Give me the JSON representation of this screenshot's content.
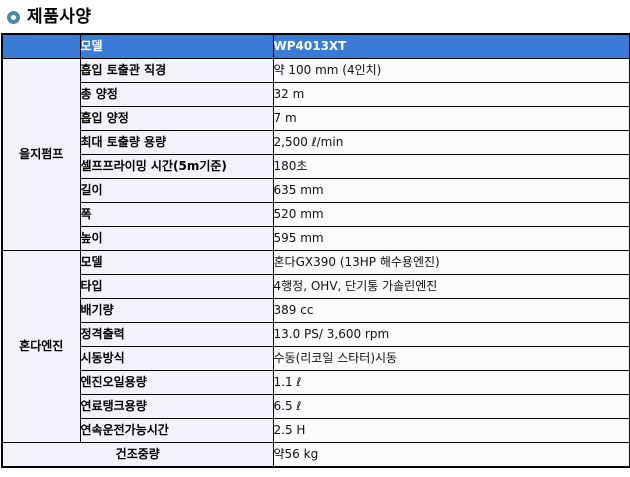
{
  "title": "제품사양",
  "colors": {
    "header_bg": "#3A7BD8",
    "header_text": "#FFFFFF",
    "cell_bg": "#F2F2FA",
    "value_bg": "#FBFBFE",
    "border": "#000000",
    "bullet_ring": "#4E8B9F"
  },
  "icons": {
    "title_bullet": "ring-icon"
  },
  "table": {
    "header": {
      "group_col": "",
      "label_col": "모델",
      "value_col": "WP4013XT"
    },
    "groups": [
      {
        "name": "을지펌프",
        "rows": [
          {
            "label": "흡입 토출관 직경",
            "value": "약 100 mm (4인치)"
          },
          {
            "label": "총 양정",
            "value": "32 m"
          },
          {
            "label": "흡입 양정",
            "value": "7 m"
          },
          {
            "label": "최대 토출량 용량",
            "value": "2,500 ℓ/min"
          },
          {
            "label": "셀프프라이밍 시간(5m기준)",
            "value": "180초"
          },
          {
            "label": "길이",
            "value": "635 mm"
          },
          {
            "label": "폭",
            "value": "520 mm"
          },
          {
            "label": "높이",
            "value": "595 mm"
          }
        ]
      },
      {
        "name": "혼다엔진",
        "rows": [
          {
            "label": "모델",
            "value": "혼다GX390 (13HP 해수용엔진)"
          },
          {
            "label": "타입",
            "value": "4행정, OHV, 단기통 가솔린엔진"
          },
          {
            "label": "배기량",
            "value": "389 cc"
          },
          {
            "label": "정격출력",
            "value": "13.0 PS/ 3,600 rpm"
          },
          {
            "label": "시동방식",
            "value": "수동(리코일 스타터)시동"
          },
          {
            "label": "엔진오일용량",
            "value": "1.1 ℓ"
          },
          {
            "label": "연료탱크용량",
            "value": "6.5 ℓ"
          },
          {
            "label": "연속운전가능시간",
            "value": "2.5 H"
          }
        ]
      }
    ],
    "footer": {
      "label": "건조중량",
      "value": "약56 kg"
    }
  }
}
